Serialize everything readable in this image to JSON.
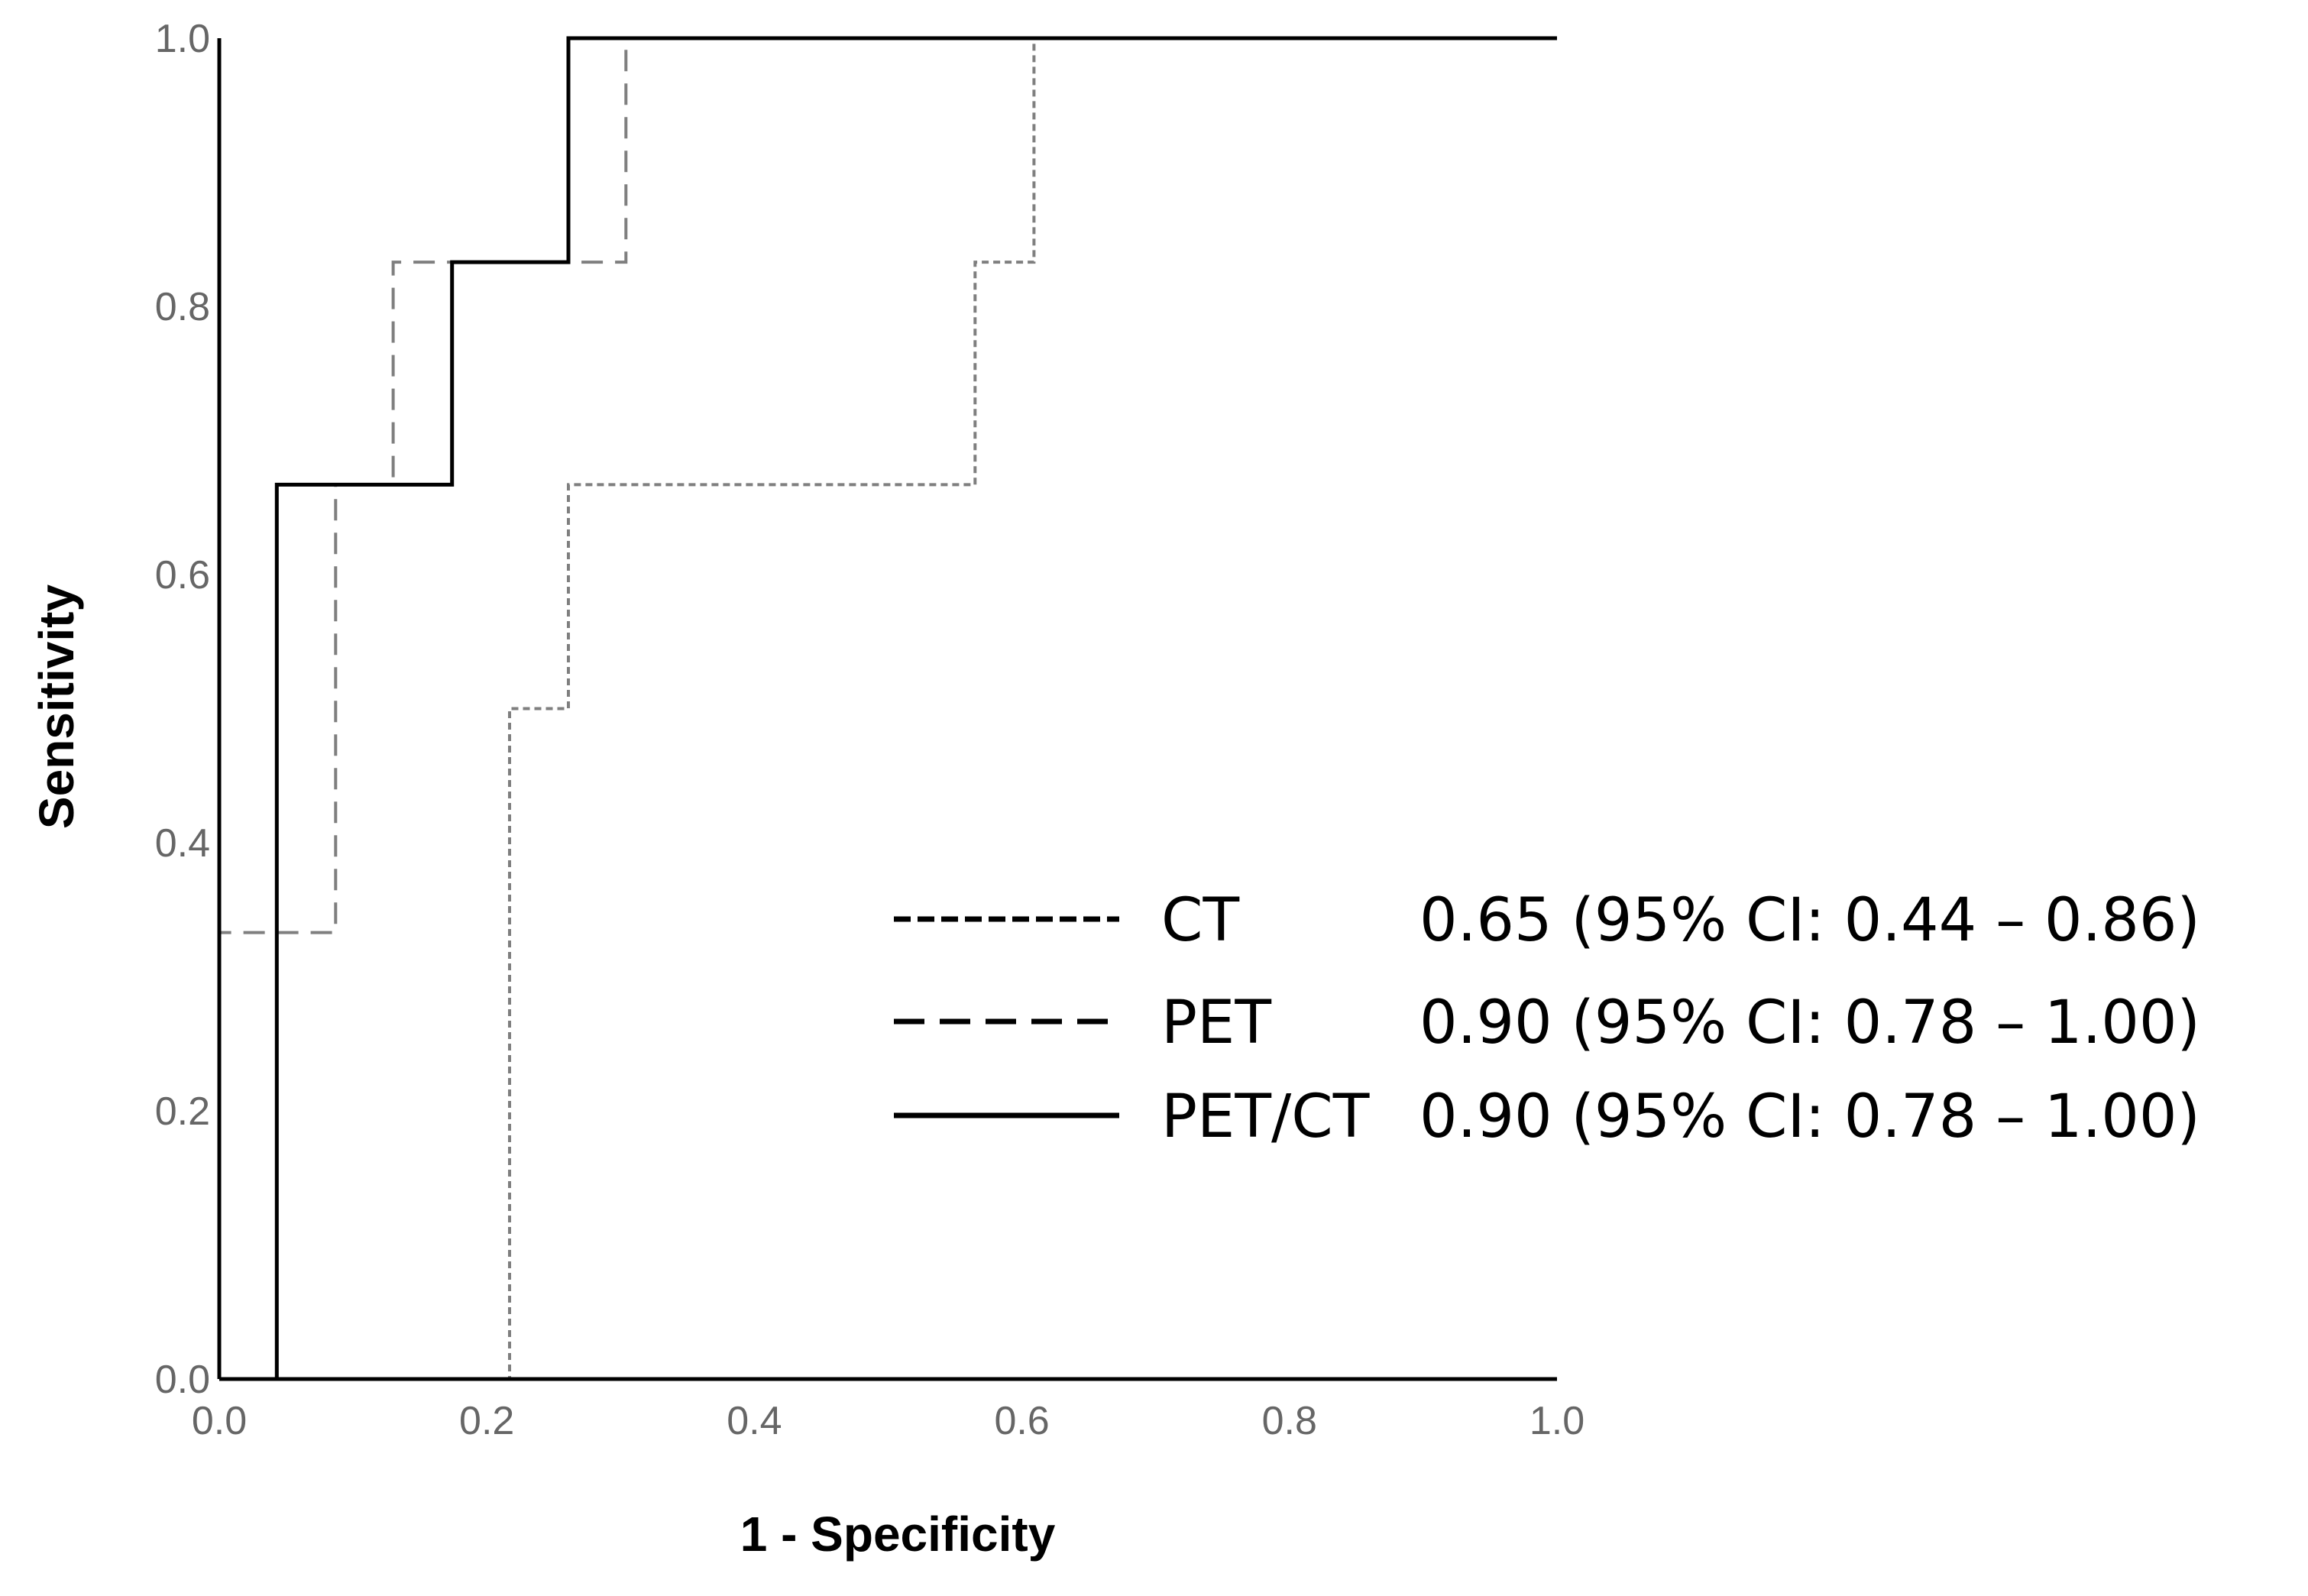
{
  "chart_data": {
    "type": "line",
    "xlabel": "1 - Specificity",
    "ylabel": "Sensitivity",
    "xlim": [
      0,
      1
    ],
    "ylim": [
      0,
      1
    ],
    "x_ticks": [
      "0.0",
      "0.2",
      "0.4",
      "0.6",
      "0.8",
      "1.0"
    ],
    "y_ticks": [
      "0.0",
      "0.2",
      "0.4",
      "0.6",
      "0.8",
      "1.0"
    ],
    "grid": false,
    "legend_position": "right",
    "series": [
      {
        "name": "CT",
        "auc_label": "0.65 (95% CI: 0.44 – 0.86)",
        "line_style": "dotted",
        "color": "#7f7f7f",
        "points": [
          [
            0,
            0
          ],
          [
            0.217,
            0
          ],
          [
            0.217,
            0.5
          ],
          [
            0.261,
            0.5
          ],
          [
            0.261,
            0.667
          ],
          [
            0.565,
            0.667
          ],
          [
            0.565,
            0.833
          ],
          [
            0.609,
            0.833
          ],
          [
            0.609,
            1.0
          ],
          [
            1.0,
            1.0
          ]
        ]
      },
      {
        "name": "PET",
        "auc_label": "0.90 (95% CI: 0.78 – 1.00)",
        "line_style": "dashed",
        "color": "#7f7f7f",
        "points": [
          [
            0,
            0
          ],
          [
            0,
            0.333
          ],
          [
            0.087,
            0.333
          ],
          [
            0.087,
            0.667
          ],
          [
            0.13,
            0.667
          ],
          [
            0.13,
            0.833
          ],
          [
            0.304,
            0.833
          ],
          [
            0.304,
            1.0
          ],
          [
            1.0,
            1.0
          ]
        ]
      },
      {
        "name": "PET/CT",
        "auc_label": "0.90 (95% CI: 0.78 – 1.00)",
        "line_style": "solid",
        "color": "#000000",
        "points": [
          [
            0.043,
            0
          ],
          [
            0.043,
            0.667
          ],
          [
            0.174,
            0.667
          ],
          [
            0.174,
            0.833
          ],
          [
            0.261,
            0.833
          ],
          [
            0.261,
            1.0
          ],
          [
            1.0,
            1.0
          ]
        ]
      }
    ]
  }
}
